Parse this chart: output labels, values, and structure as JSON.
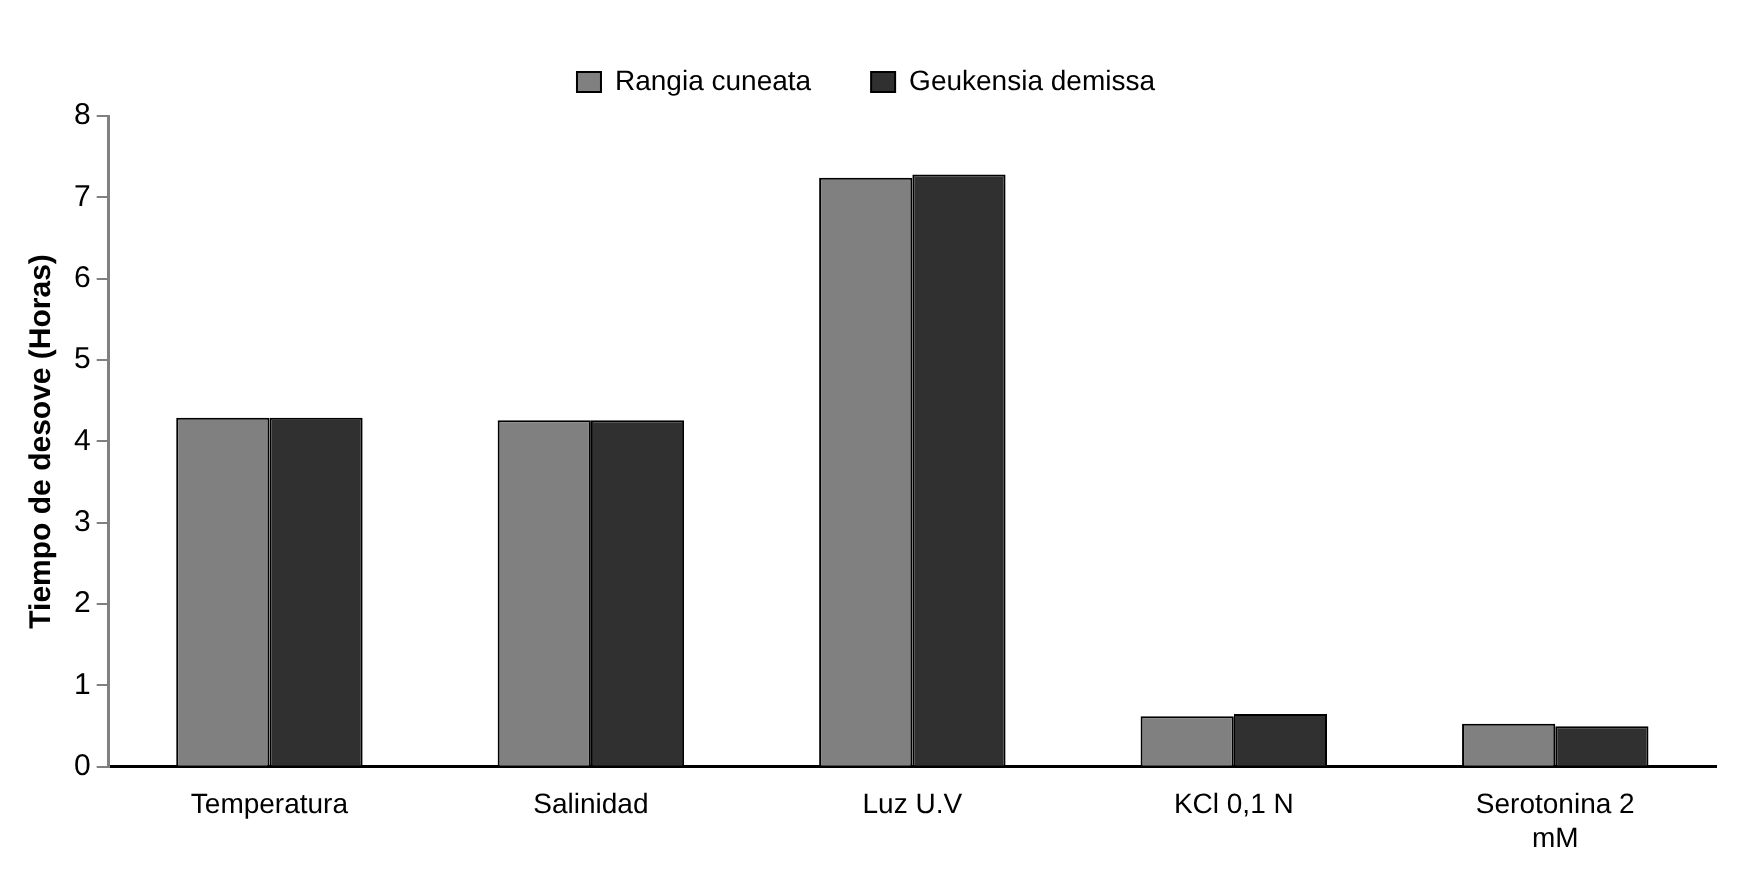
{
  "chart_data": {
    "type": "bar",
    "ylabel": "Tiempo de desove (Horas)",
    "categories": [
      "Temperatura",
      "Salinidad",
      "Luz U.V",
      "KCl 0,1 N",
      "Serotonina 2 mM"
    ],
    "series": [
      {
        "name": "Rangia cuneata",
        "color": "#808080",
        "values": [
          4.29,
          4.26,
          7.24,
          0.62,
          0.53
        ]
      },
      {
        "name": "Geukensia demissa",
        "color": "#303030",
        "values": [
          4.29,
          4.26,
          7.28,
          0.65,
          0.5
        ]
      }
    ],
    "ylim": [
      0,
      8
    ],
    "yticks": [
      0,
      1,
      2,
      3,
      4,
      5,
      6,
      7,
      8
    ],
    "grid": false,
    "legend": "top"
  }
}
